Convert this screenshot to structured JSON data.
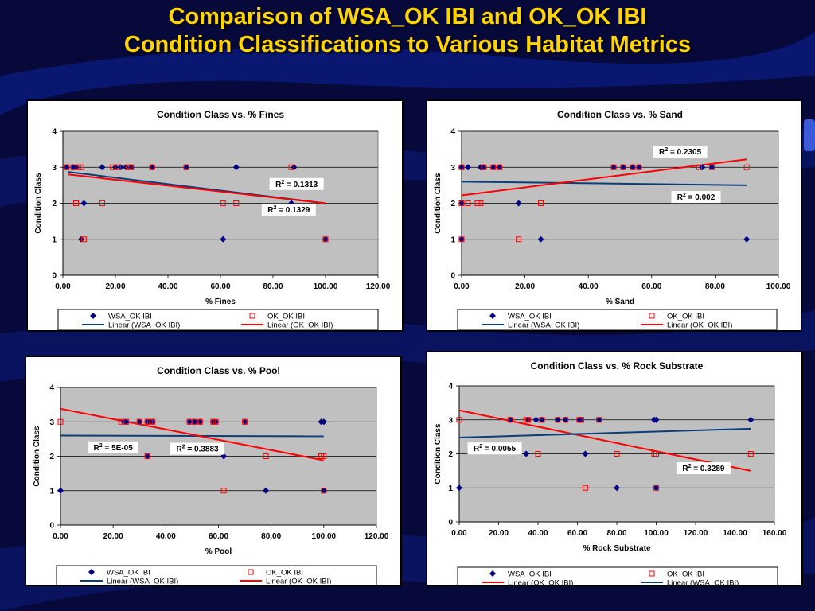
{
  "slide": {
    "title_line1": "Comparison of WSA_OK IBI and OK_OK IBI",
    "title_line2": "Condition Classifications to Various Habitat Metrics",
    "colors": {
      "background": "#06093a",
      "title": "#ffd400",
      "band": "#0b1a7a"
    }
  },
  "chart_data": [
    {
      "type": "scatter",
      "title": "Condition Class vs. % Fines",
      "xlabel": "% Fines",
      "ylabel": "Condition Class",
      "xlim": [
        0,
        120
      ],
      "ylim": [
        0,
        4
      ],
      "xticks": [
        0,
        20,
        40,
        60,
        80,
        100,
        120
      ],
      "yticks": [
        0,
        1,
        2,
        3,
        4
      ],
      "xtick_labels": [
        "0.00",
        "20.00",
        "40.00",
        "60.00",
        "80.00",
        "100.00",
        "120.00"
      ],
      "ytick_labels": [
        "0",
        "1",
        "2",
        "3",
        "4"
      ],
      "grid": "horizontal",
      "plot_background": "#c0c0c0",
      "series": [
        {
          "name": "WSA_OK IBI",
          "marker": "diamond",
          "color": "#000080",
          "points": [
            [
              1.5,
              3
            ],
            [
              4,
              3
            ],
            [
              5,
              3
            ],
            [
              7,
              1
            ],
            [
              8,
              2
            ],
            [
              15,
              3
            ],
            [
              20,
              3
            ],
            [
              22,
              3
            ],
            [
              24,
              3
            ],
            [
              26,
              3
            ],
            [
              34,
              3
            ],
            [
              47,
              3
            ],
            [
              66,
              3
            ],
            [
              61,
              1
            ],
            [
              88,
              3
            ],
            [
              87,
              2
            ],
            [
              100,
              1
            ]
          ]
        },
        {
          "name": "OK_OK IBI",
          "marker": "square",
          "color": "#ff0000",
          "points": [
            [
              1.5,
              3
            ],
            [
              4,
              3
            ],
            [
              5,
              2
            ],
            [
              6,
              3
            ],
            [
              7,
              3
            ],
            [
              8,
              1
            ],
            [
              15,
              2
            ],
            [
              19,
              3
            ],
            [
              21,
              3
            ],
            [
              25,
              3
            ],
            [
              26,
              3
            ],
            [
              34,
              3
            ],
            [
              47,
              3
            ],
            [
              61,
              2
            ],
            [
              66,
              2
            ],
            [
              87,
              3
            ],
            [
              100,
              1
            ]
          ]
        }
      ],
      "trendlines": [
        {
          "name": "Linear (WSA_OK IBI)",
          "color": "#0b3d7a",
          "from": [
            2,
            2.87
          ],
          "to": [
            100,
            2.0
          ]
        },
        {
          "name": "Linear (OK_OK IBI)",
          "color": "#ff0000",
          "from": [
            2,
            2.8
          ],
          "to": [
            100,
            2.0
          ]
        }
      ],
      "annotations": [
        {
          "text_main": "R",
          "sup": "2",
          "text_rest": " = 0.1313",
          "x": 89,
          "y": 2.48
        },
        {
          "text_main": "R",
          "sup": "2",
          "text_rest": " = 0.1329",
          "x": 86,
          "y": 1.77
        }
      ],
      "legend": [
        "WSA_OK IBI",
        "OK_OK IBI",
        "Linear (WSA_OK IBI)",
        "Linear (OK_OK IBI)"
      ]
    },
    {
      "type": "scatter",
      "title": "Condition Class vs. % Sand",
      "xlabel": "% Sand",
      "ylabel": "Condition Class",
      "xlim": [
        0,
        100
      ],
      "ylim": [
        0,
        4
      ],
      "xticks": [
        0,
        20,
        40,
        60,
        80,
        100
      ],
      "yticks": [
        0,
        1,
        2,
        3,
        4
      ],
      "xtick_labels": [
        "0.00",
        "20.00",
        "40.00",
        "60.00",
        "80.00",
        "100.00"
      ],
      "ytick_labels": [
        "0",
        "1",
        "2",
        "3",
        "4"
      ],
      "grid": "horizontal",
      "plot_background": "#c0c0c0",
      "series": [
        {
          "name": "WSA_OK IBI",
          "marker": "diamond",
          "color": "#000080",
          "points": [
            [
              0,
              3
            ],
            [
              0,
              2
            ],
            [
              0,
              1
            ],
            [
              2,
              3
            ],
            [
              6,
              3
            ],
            [
              7,
              3
            ],
            [
              10,
              3
            ],
            [
              12,
              3
            ],
            [
              18,
              2
            ],
            [
              25,
              1
            ],
            [
              48,
              3
            ],
            [
              51,
              3
            ],
            [
              54,
              3
            ],
            [
              56,
              3
            ],
            [
              76,
              3
            ],
            [
              79,
              3
            ],
            [
              90,
              1
            ]
          ]
        },
        {
          "name": "OK_OK IBI",
          "marker": "square",
          "color": "#ff0000",
          "points": [
            [
              0,
              3
            ],
            [
              0,
              2
            ],
            [
              0,
              1
            ],
            [
              2,
              2
            ],
            [
              5,
              2
            ],
            [
              6,
              2
            ],
            [
              7,
              3
            ],
            [
              10,
              3
            ],
            [
              12,
              3
            ],
            [
              18,
              1
            ],
            [
              25,
              2
            ],
            [
              48,
              3
            ],
            [
              51,
              3
            ],
            [
              54,
              3
            ],
            [
              56,
              3
            ],
            [
              75,
              3
            ],
            [
              79,
              3
            ],
            [
              90,
              3
            ]
          ]
        }
      ],
      "trendlines": [
        {
          "name": "Linear (WSA_OK IBI)",
          "color": "#0b3d7a",
          "from": [
            0,
            2.6
          ],
          "to": [
            90,
            2.5
          ]
        },
        {
          "name": "Linear (OK_OK IBI)",
          "color": "#ff0000",
          "from": [
            0,
            2.22
          ],
          "to": [
            90,
            3.22
          ]
        }
      ],
      "annotations": [
        {
          "text_main": "R",
          "sup": "2",
          "text_rest": " = 0.2305",
          "x": 69,
          "y": 3.38
        },
        {
          "text_main": "R",
          "sup": "2",
          "text_rest": " = 0.002",
          "x": 74,
          "y": 2.12
        }
      ],
      "legend": [
        "WSA_OK IBI",
        "OK_OK IBI",
        "Linear (WSA_OK IBI)",
        "Linear (OK_OK IBI)"
      ]
    },
    {
      "type": "scatter",
      "title": "Condition Class vs. % Pool",
      "xlabel": "% Pool",
      "ylabel": "Condition Class",
      "xlim": [
        0,
        120
      ],
      "ylim": [
        0,
        4
      ],
      "xticks": [
        0,
        20,
        40,
        60,
        80,
        100,
        120
      ],
      "yticks": [
        0,
        1,
        2,
        3,
        4
      ],
      "xtick_labels": [
        "0.00",
        "20.00",
        "40.00",
        "60.00",
        "80.00",
        "100.00",
        "120.00"
      ],
      "ytick_labels": [
        "0",
        "1",
        "2",
        "3",
        "4"
      ],
      "grid": "horizontal",
      "plot_background": "#c0c0c0",
      "series": [
        {
          "name": "WSA_OK IBI",
          "marker": "diamond",
          "color": "#000080",
          "points": [
            [
              0,
              1
            ],
            [
              24,
              3
            ],
            [
              25,
              3
            ],
            [
              30,
              3
            ],
            [
              33,
              3
            ],
            [
              34,
              3
            ],
            [
              35,
              3
            ],
            [
              33,
              2
            ],
            [
              49,
              3
            ],
            [
              51,
              3
            ],
            [
              53,
              3
            ],
            [
              58,
              3
            ],
            [
              59,
              3
            ],
            [
              62,
              2
            ],
            [
              70,
              3
            ],
            [
              78,
              1
            ],
            [
              99,
              3
            ],
            [
              100,
              3
            ],
            [
              100,
              1
            ]
          ]
        },
        {
          "name": "OK_OK IBI",
          "marker": "square",
          "color": "#ff0000",
          "points": [
            [
              0,
              3
            ],
            [
              23,
              3
            ],
            [
              25,
              3
            ],
            [
              30,
              3
            ],
            [
              33,
              3
            ],
            [
              34,
              3
            ],
            [
              35,
              3
            ],
            [
              33,
              2
            ],
            [
              49,
              3
            ],
            [
              51,
              3
            ],
            [
              53,
              3
            ],
            [
              58,
              3
            ],
            [
              59,
              3
            ],
            [
              62,
              1
            ],
            [
              70,
              3
            ],
            [
              78,
              2
            ],
            [
              99,
              2
            ],
            [
              100,
              2
            ],
            [
              100,
              1
            ]
          ]
        }
      ],
      "trendlines": [
        {
          "name": "Linear (WSA_OK IBI)",
          "color": "#0b3d7a",
          "from": [
            0,
            2.6
          ],
          "to": [
            100,
            2.58
          ]
        },
        {
          "name": "Linear (OK_OK IBI)",
          "color": "#ff0000",
          "from": [
            0,
            3.38
          ],
          "to": [
            100,
            1.88
          ]
        }
      ],
      "annotations": [
        {
          "text_main": "R",
          "sup": "2",
          "text_rest": " = 5E-05",
          "x": 20,
          "y": 2.2
        },
        {
          "text_main": "R",
          "sup": "2",
          "text_rest": " = 0.3883",
          "x": 52,
          "y": 2.16
        }
      ],
      "legend": [
        "WSA_OK IBI",
        "OK_OK IBI",
        "Linear (WSA_OK IBI)",
        "Linear (OK_OK IBI)"
      ]
    },
    {
      "type": "scatter",
      "title": "Condition Class vs. % Rock Substrate",
      "xlabel": "% Rock Substrate",
      "ylabel": "Condition Class",
      "xlim": [
        0,
        160
      ],
      "ylim": [
        0,
        4
      ],
      "xticks": [
        0,
        20,
        40,
        60,
        80,
        100,
        120,
        140,
        160
      ],
      "yticks": [
        0,
        1,
        2,
        3,
        4
      ],
      "xtick_labels": [
        "0.00",
        "20.00",
        "40.00",
        "60.00",
        "80.00",
        "100.00",
        "120.00",
        "140.00",
        "160.00"
      ],
      "ytick_labels": [
        "0",
        "1",
        "2",
        "3",
        "4"
      ],
      "grid": "horizontal",
      "plot_background": "#c0c0c0",
      "series": [
        {
          "name": "WSA_OK IBI",
          "marker": "diamond",
          "color": "#000080",
          "points": [
            [
              0,
              1
            ],
            [
              26,
              3
            ],
            [
              34,
              2
            ],
            [
              35,
              3
            ],
            [
              39,
              3
            ],
            [
              42,
              3
            ],
            [
              50,
              3
            ],
            [
              54,
              3
            ],
            [
              61,
              3
            ],
            [
              62,
              3
            ],
            [
              64,
              2
            ],
            [
              71,
              3
            ],
            [
              80,
              1
            ],
            [
              99,
              3
            ],
            [
              100,
              3
            ],
            [
              100,
              1
            ],
            [
              148,
              3
            ]
          ]
        },
        {
          "name": "OK_OK IBI",
          "marker": "square",
          "color": "#ff0000",
          "points": [
            [
              0,
              3
            ],
            [
              26,
              3
            ],
            [
              34,
              3
            ],
            [
              35,
              3
            ],
            [
              40,
              2
            ],
            [
              42,
              3
            ],
            [
              50,
              3
            ],
            [
              54,
              3
            ],
            [
              61,
              3
            ],
            [
              62,
              3
            ],
            [
              64,
              1
            ],
            [
              71,
              3
            ],
            [
              80,
              2
            ],
            [
              99,
              2
            ],
            [
              100,
              2
            ],
            [
              100,
              1
            ],
            [
              148,
              2
            ]
          ]
        }
      ],
      "trendlines": [
        {
          "name": "Linear (OK_OK IBI)",
          "color": "#ff0000",
          "from": [
            0,
            3.28
          ],
          "to": [
            148,
            1.5
          ]
        },
        {
          "name": "Linear (WSA_OK IBI)",
          "color": "#0b3d7a",
          "from": [
            0,
            2.48
          ],
          "to": [
            148,
            2.74
          ]
        }
      ],
      "annotations": [
        {
          "text_main": "R",
          "sup": "2",
          "text_rest": " = 0.0055",
          "x": 18,
          "y": 2.1
        },
        {
          "text_main": "R",
          "sup": "2",
          "text_rest": " = 0.3289",
          "x": 124,
          "y": 1.52
        }
      ],
      "legend": [
        "WSA_OK IBI",
        "OK_OK IBI",
        "Linear (OK_OK IBI)",
        "Linear (WSA_OK IBI)"
      ]
    }
  ]
}
